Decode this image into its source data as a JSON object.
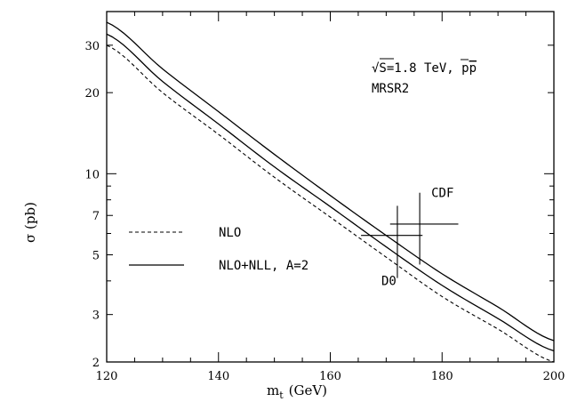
{
  "chart_data": {
    "type": "line",
    "title": "",
    "xlabel": "m_t (GeV)",
    "xlabel_main": "m",
    "xlabel_sub": "t",
    "xlabel_unit": "(GeV)",
    "ylabel": "σ (pb)",
    "xlim": [
      120,
      200
    ],
    "ylim": [
      2,
      40
    ],
    "yscale": "log",
    "x_ticks": [
      120,
      140,
      160,
      180,
      200
    ],
    "x_tick_labels": [
      "120",
      "140",
      "160",
      "180",
      "200"
    ],
    "y_ticks": [
      2,
      3,
      5,
      7,
      10,
      20,
      30
    ],
    "y_tick_labels": [
      "2",
      "3",
      "5",
      "7",
      "10",
      "20",
      "30"
    ],
    "grid": false,
    "legend_position": "left-middle",
    "series": [
      {
        "name": "NLO",
        "style": "dashed",
        "x": [
          120,
          130,
          140,
          150,
          160,
          170,
          180,
          190,
          200
        ],
        "y": [
          30.0,
          20.0,
          14.0,
          9.7,
          6.9,
          4.9,
          3.5,
          2.65,
          2.0
        ]
      },
      {
        "name": "NLO+NLL, A=2",
        "style": "solid",
        "x": [
          120,
          130,
          140,
          150,
          160,
          170,
          180,
          190,
          200
        ],
        "y": [
          33.0,
          22.0,
          15.3,
          10.6,
          7.55,
          5.35,
          3.85,
          2.9,
          2.2
        ]
      },
      {
        "name": "",
        "style": "solid",
        "x": [
          120,
          130,
          140,
          150,
          160,
          170,
          180,
          190,
          200
        ],
        "y": [
          36.5,
          24.5,
          17.0,
          11.8,
          8.3,
          5.9,
          4.25,
          3.2,
          2.4
        ]
      }
    ],
    "data_points": [
      {
        "label": "CDF",
        "x": 176,
        "y": 6.5,
        "x_low": 170.7,
        "x_high": 182.9,
        "y_low": 4.6,
        "y_high": 8.5
      },
      {
        "label": "D0",
        "x": 172,
        "y": 5.9,
        "x_low": 165.5,
        "x_high": 176.5,
        "y_low": 4.1,
        "y_high": 7.6
      }
    ],
    "annotations": {
      "energy_sqrt": "√S",
      "energy_rest": "=1.8 TeV, p",
      "pbar": "p",
      "pdf": "MRSR2"
    }
  }
}
